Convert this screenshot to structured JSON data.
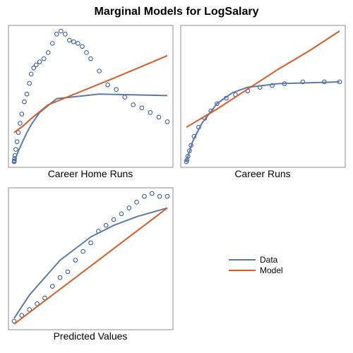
{
  "chart_data": [
    {
      "type": "scatter",
      "title": "Marginal Models for LogSalary",
      "xlabel": "Career Home Runs",
      "ylabel": "",
      "legend": "right",
      "grid": false,
      "points": [
        [
          0,
          1
        ],
        [
          2,
          1.5
        ],
        [
          5,
          3
        ],
        [
          10,
          5
        ],
        [
          20,
          9
        ],
        [
          35,
          14
        ],
        [
          50,
          20
        ],
        [
          70,
          26
        ],
        [
          90,
          32
        ],
        [
          120,
          40
        ],
        [
          150,
          45
        ],
        [
          180,
          52
        ],
        [
          200,
          58
        ],
        [
          230,
          62
        ],
        [
          260,
          64
        ],
        [
          300,
          66
        ],
        [
          350,
          68
        ],
        [
          400,
          72
        ],
        [
          450,
          78
        ],
        [
          500,
          84
        ],
        [
          550,
          86
        ],
        [
          600,
          84
        ],
        [
          650,
          80
        ],
        [
          700,
          79
        ],
        [
          750,
          78
        ],
        [
          800,
          76
        ],
        [
          850,
          72
        ],
        [
          900,
          68
        ],
        [
          1000,
          60
        ],
        [
          1100,
          51
        ],
        [
          1200,
          48
        ],
        [
          1300,
          43
        ],
        [
          1400,
          38
        ],
        [
          1500,
          36
        ],
        [
          1600,
          33
        ],
        [
          1700,
          30
        ],
        [
          1800,
          27
        ]
      ],
      "series": [
        {
          "name": "Data",
          "color": "#5b7aa6",
          "x": [
            0,
            50,
            100,
            150,
            200,
            300,
            500,
            1000,
            1800
          ],
          "y": [
            1,
            8,
            14,
            20,
            25,
            33,
            42,
            45,
            44
          ]
        },
        {
          "name": "Model",
          "color": "#d35c28",
          "x": [
            0,
            100,
            200,
            400,
            800,
            1200,
            1800
          ],
          "y": [
            20,
            24,
            29,
            38,
            47,
            56,
            70
          ]
        }
      ]
    },
    {
      "type": "scatter",
      "xlabel": "Career Runs",
      "ylabel": "",
      "grid": false,
      "points": [
        [
          0,
          1
        ],
        [
          20,
          2
        ],
        [
          50,
          4
        ],
        [
          100,
          7
        ],
        [
          150,
          10
        ],
        [
          250,
          15
        ],
        [
          400,
          20
        ],
        [
          600,
          25
        ],
        [
          800,
          29
        ],
        [
          1000,
          33
        ],
        [
          1300,
          36
        ],
        [
          1600,
          38
        ],
        [
          2000,
          40
        ],
        [
          2400,
          42
        ],
        [
          2800,
          43
        ],
        [
          3200,
          44
        ],
        [
          3800,
          45
        ],
        [
          4500,
          45
        ],
        [
          5000,
          45
        ]
      ],
      "series": [
        {
          "name": "Data",
          "color": "#5b7aa6",
          "x": [
            0,
            200,
            500,
            1000,
            1500,
            2000,
            3000,
            5000
          ],
          "y": [
            1,
            12,
            22,
            33,
            39,
            42,
            44,
            45
          ]
        },
        {
          "name": "Model",
          "color": "#d35c28",
          "x": [
            0,
            1000,
            2000,
            3000,
            4000,
            5000
          ],
          "y": [
            20,
            30,
            41,
            52,
            62,
            73
          ]
        }
      ]
    },
    {
      "type": "scatter",
      "xlabel": "Predicted Values",
      "ylabel": "",
      "grid": false,
      "points": [
        [
          0,
          1
        ],
        [
          1,
          3
        ],
        [
          2,
          5
        ],
        [
          3,
          7
        ],
        [
          4,
          9
        ],
        [
          5,
          13
        ],
        [
          6,
          16
        ],
        [
          7,
          18
        ],
        [
          8,
          22
        ],
        [
          9,
          25
        ],
        [
          10,
          28
        ],
        [
          11,
          32
        ],
        [
          12,
          34
        ],
        [
          13,
          36
        ],
        [
          14,
          38
        ],
        [
          15,
          40
        ],
        [
          16,
          42
        ],
        [
          17,
          44
        ],
        [
          18,
          45
        ],
        [
          19,
          44
        ],
        [
          20,
          44
        ]
      ],
      "series": [
        {
          "name": "Data",
          "color": "#5b7aa6",
          "x": [
            0,
            2,
            4,
            6,
            8,
            10,
            13,
            16,
            20
          ],
          "y": [
            2,
            10,
            16,
            22,
            26,
            30,
            34,
            37,
            40
          ]
        },
        {
          "name": "Model",
          "color": "#d35c28",
          "x": [
            0,
            5,
            10,
            15,
            20
          ],
          "y": [
            0,
            10,
            20,
            30,
            40
          ]
        }
      ]
    }
  ]
}
